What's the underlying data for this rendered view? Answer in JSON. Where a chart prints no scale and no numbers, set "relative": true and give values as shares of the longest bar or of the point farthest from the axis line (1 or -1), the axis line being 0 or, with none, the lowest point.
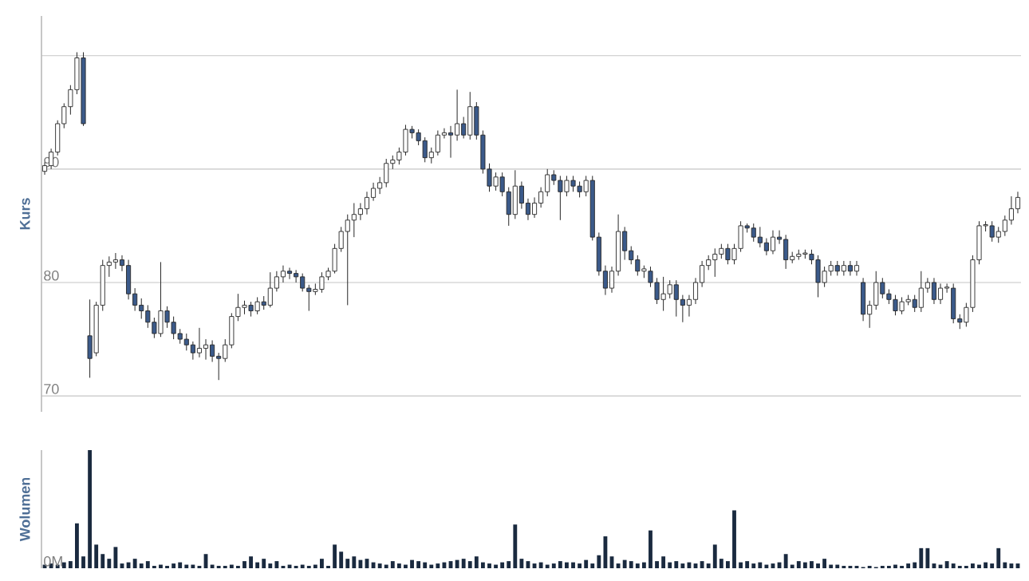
{
  "chart_data": [
    {
      "type": "candlestick",
      "ylabel": "Kurs",
      "grid": "y",
      "tick_labels": "y",
      "colors": [
        "#ffffff",
        "#ffffff",
        "#ffffff",
        "#ffffff",
        "#ffffff",
        "#ffffff",
        "#3b5a8a",
        "#3b5a8a",
        "#ffffff",
        "#ffffff",
        "#ffffff",
        "#ffffff",
        "#3b5a8a",
        "#3b5a8a",
        "#3b5a8a",
        "#3b5a8a",
        "#3b5a8a",
        "#3b5a8a",
        "#ffffff",
        "#3b5a8a",
        "#3b5a8a",
        "#3b5a8a",
        "#3b5a8a",
        "#3b5a8a",
        "#ffffff",
        "#ffffff",
        "#3b5a8a",
        "#3b5a8a",
        "#ffffff",
        "#ffffff",
        "#ffffff",
        "#ffffff",
        "#3b5a8a",
        "#ffffff",
        "#3b5a8a",
        "#ffffff",
        "#ffffff",
        "#ffffff",
        "#3b5a8a",
        "#3b5a8a",
        "#3b5a8a",
        "#3b5a8a",
        "#ffffff",
        "#ffffff",
        "#ffffff",
        "#ffffff",
        "#ffffff",
        "#ffffff",
        "#ffffff",
        "#ffffff",
        "#ffffff",
        "#ffffff",
        "#ffffff",
        "#ffffff",
        "#ffffff",
        "#ffffff",
        "#ffffff",
        "#3b5a8a",
        "#3b5a8a",
        "#3b5a8a",
        "#ffffff",
        "#ffffff",
        "#ffffff",
        "#3b5a8a",
        "#ffffff",
        "#3b5a8a",
        "#ffffff",
        "#3b5a8a",
        "#3b5a8a",
        "#3b5a8a",
        "#ffffff",
        "#3b5a8a",
        "#3b5a8a",
        "#ffffff",
        "#3b5a8a",
        "#3b5a8a",
        "#ffffff",
        "#ffffff",
        "#ffffff",
        "#3b5a8a",
        "#3b5a8a",
        "#ffffff",
        "#3b5a8a",
        "#3b5a8a",
        "#ffffff",
        "#3b5a8a",
        "#3b5a8a",
        "#3b5a8a",
        "#ffffff",
        "#ffffff",
        "#3b5a8a",
        "#3b5a8a",
        "#3b5a8a",
        "#ffffff",
        "#3b5a8a",
        "#3b5a8a",
        "#ffffff",
        "#ffffff",
        "#3b5a8a",
        "#3b5a8a",
        "#ffffff",
        "#ffffff",
        "#ffffff",
        "#ffffff",
        "#ffffff",
        "#ffffff",
        "#3b5a8a",
        "#ffffff",
        "#ffffff",
        "#3b5a8a",
        "#3b5a8a",
        "#3b5a8a",
        "#3b5a8a",
        "#ffffff",
        "#3b5a8a",
        "#3b5a8a",
        "#ffffff",
        "#ffffff",
        "#ffffff",
        "#3b5a8a",
        "#3b5a8a",
        "#ffffff",
        "#ffffff",
        "#3b5a8a",
        "#ffffff",
        "#3b5a8a",
        "#ffffff",
        "#3b5a8a",
        "#ffffff",
        "#ffffff",
        "#3b5a8a",
        "#3b5a8a",
        "#3b5a8a",
        "#ffffff",
        "#ffffff",
        "#3b5a8a",
        "#ffffff",
        "#ffffff",
        "#3b5a8a",
        "#ffffff",
        "#ffffff",
        "#3b5a8a",
        "#3b5a8a",
        "#ffffff",
        "#ffffff",
        "#ffffff",
        "#ffffff",
        "#3b5a8a",
        "#ffffff",
        "#ffffff",
        "#ffffff",
        "#ffffff"
      ],
      "ylim": [
        68.6,
        103.5
      ],
      "yticks": [
        70,
        80,
        90,
        {
          "value": 100,
          "label": null
        }
      ],
      "categories": [
        null,
        null,
        null,
        null,
        null,
        null,
        null,
        null,
        null,
        null,
        null,
        null,
        null,
        null,
        null,
        null,
        null,
        null,
        null,
        null,
        null,
        null,
        null,
        null,
        null,
        null,
        null,
        null,
        null,
        null,
        null,
        null,
        null,
        null,
        null,
        null,
        null,
        null,
        null,
        null,
        null,
        null,
        null,
        null,
        null,
        null,
        null,
        null,
        null,
        null,
        null,
        null,
        null,
        null,
        null,
        null,
        null,
        null,
        null,
        null,
        null,
        null,
        null,
        null,
        null,
        null,
        null,
        null,
        null,
        null,
        null,
        null,
        null,
        null,
        null,
        null,
        null,
        null,
        null,
        null,
        null,
        null,
        null,
        null,
        null,
        null,
        null,
        null,
        null,
        null,
        null,
        null,
        null,
        null,
        null,
        null,
        null,
        null,
        null,
        null,
        null,
        null,
        null,
        null,
        null,
        null,
        null,
        null,
        null,
        null,
        null,
        null,
        null,
        null,
        null,
        null,
        null,
        null,
        null,
        null,
        null,
        null,
        null,
        null,
        null,
        null,
        null,
        null,
        null,
        null,
        null,
        null,
        null,
        null,
        null,
        null,
        null,
        null,
        null,
        null,
        null,
        null,
        null,
        null,
        null,
        null,
        null,
        null,
        null,
        null,
        null,
        null
      ],
      "ohlc": [
        [
          89.8,
          90.6,
          89.5,
          90.3
        ],
        [
          90.3,
          91.8,
          90.0,
          91.5
        ],
        [
          91.5,
          94.3,
          91.2,
          94.0
        ],
        [
          94.0,
          95.8,
          93.6,
          95.5
        ],
        [
          95.5,
          97.4,
          94.8,
          97.0
        ],
        [
          97.0,
          100.3,
          96.6,
          99.8
        ],
        [
          99.8,
          100.3,
          93.8,
          94.0
        ],
        [
          75.3,
          78.5,
          71.6,
          73.3
        ],
        [
          73.8,
          78.3,
          73.5,
          78.0
        ],
        [
          78.0,
          82.0,
          77.5,
          81.5
        ],
        [
          81.5,
          82.3,
          80.5,
          81.8
        ],
        [
          81.8,
          82.6,
          81.2,
          82.0
        ],
        [
          82.0,
          82.4,
          81.0,
          81.5
        ],
        [
          81.5,
          82.0,
          78.5,
          79.0
        ],
        [
          79.0,
          79.5,
          77.5,
          78.0
        ],
        [
          78.0,
          78.6,
          76.8,
          77.5
        ],
        [
          77.5,
          78.0,
          76.0,
          76.5
        ],
        [
          76.5,
          76.9,
          75.1,
          75.5
        ],
        [
          75.5,
          81.8,
          75.2,
          77.5
        ],
        [
          77.5,
          77.9,
          76.0,
          76.5
        ],
        [
          76.5,
          77.0,
          75.0,
          75.5
        ],
        [
          75.5,
          75.9,
          74.6,
          75.0
        ],
        [
          75.0,
          75.5,
          74.0,
          74.5
        ],
        [
          74.5,
          74.8,
          73.2,
          73.8
        ],
        [
          73.8,
          76.0,
          73.4,
          74.2
        ],
        [
          74.2,
          75.0,
          73.2,
          74.5
        ],
        [
          74.5,
          74.9,
          73.0,
          73.5
        ],
        [
          73.5,
          73.8,
          71.4,
          73.3
        ],
        [
          73.3,
          75.0,
          73.0,
          74.5
        ],
        [
          74.5,
          77.3,
          74.2,
          77.0
        ],
        [
          77.0,
          79.0,
          76.6,
          77.8
        ],
        [
          77.8,
          78.4,
          77.2,
          78.0
        ],
        [
          78.0,
          78.3,
          77.0,
          77.5
        ],
        [
          77.5,
          78.7,
          77.2,
          78.3
        ],
        [
          78.3,
          78.8,
          77.6,
          78.0
        ],
        [
          78.0,
          80.9,
          77.8,
          79.5
        ],
        [
          79.5,
          81.0,
          79.2,
          80.5
        ],
        [
          80.5,
          81.5,
          80.0,
          81.0
        ],
        [
          81.0,
          81.3,
          80.3,
          80.8
        ],
        [
          80.8,
          81.1,
          80.0,
          80.5
        ],
        [
          80.5,
          80.8,
          79.2,
          79.5
        ],
        [
          79.5,
          79.8,
          77.5,
          79.2
        ],
        [
          79.2,
          79.9,
          78.9,
          79.4
        ],
        [
          79.4,
          80.9,
          79.1,
          80.5
        ],
        [
          80.5,
          81.3,
          80.2,
          81.0
        ],
        [
          81.0,
          83.4,
          80.8,
          83.0
        ],
        [
          83.0,
          84.9,
          82.7,
          84.5
        ],
        [
          84.5,
          86.0,
          78.0,
          85.5
        ],
        [
          85.5,
          87.0,
          84.0,
          86.0
        ],
        [
          86.0,
          87.0,
          85.5,
          86.5
        ],
        [
          86.5,
          88.0,
          86.0,
          87.5
        ],
        [
          87.5,
          88.8,
          87.2,
          88.3
        ],
        [
          88.3,
          89.3,
          87.8,
          88.8
        ],
        [
          88.8,
          90.9,
          88.4,
          90.5
        ],
        [
          90.5,
          91.2,
          90.0,
          90.8
        ],
        [
          90.8,
          91.9,
          90.4,
          91.5
        ],
        [
          91.5,
          93.9,
          91.2,
          93.5
        ],
        [
          93.5,
          93.8,
          92.7,
          93.2
        ],
        [
          93.2,
          93.5,
          92.1,
          92.5
        ],
        [
          92.5,
          92.8,
          90.6,
          91.0
        ],
        [
          91.0,
          91.9,
          90.5,
          91.5
        ],
        [
          91.5,
          93.4,
          91.2,
          93.0
        ],
        [
          93.0,
          93.6,
          92.7,
          93.2
        ],
        [
          93.2,
          93.8,
          91.0,
          93.0
        ],
        [
          93.0,
          97.0,
          92.5,
          94.0
        ],
        [
          94.0,
          94.6,
          92.7,
          93.0
        ],
        [
          93.0,
          96.8,
          92.6,
          95.5
        ],
        [
          95.5,
          95.9,
          92.6,
          93.0
        ],
        [
          93.0,
          93.4,
          89.6,
          90.0
        ],
        [
          90.0,
          90.5,
          88.0,
          88.5
        ],
        [
          88.5,
          89.7,
          88.1,
          89.3
        ],
        [
          89.3,
          89.7,
          87.6,
          88.0
        ],
        [
          88.0,
          88.4,
          85.0,
          86.0
        ],
        [
          86.0,
          89.9,
          85.6,
          88.5
        ],
        [
          88.5,
          88.9,
          86.5,
          87.0
        ],
        [
          87.0,
          87.4,
          85.5,
          86.0
        ],
        [
          86.0,
          87.5,
          85.7,
          87.0
        ],
        [
          87.0,
          88.4,
          86.6,
          88.0
        ],
        [
          88.0,
          90.0,
          87.6,
          89.5
        ],
        [
          89.5,
          89.9,
          88.6,
          89.0
        ],
        [
          89.0,
          89.4,
          85.5,
          88.0
        ],
        [
          88.0,
          89.4,
          87.6,
          89.0
        ],
        [
          89.0,
          89.4,
          88.0,
          88.5
        ],
        [
          88.5,
          88.9,
          87.5,
          88.0
        ],
        [
          88.0,
          89.4,
          87.6,
          89.0
        ],
        [
          89.0,
          89.4,
          83.7,
          84.0
        ],
        [
          84.0,
          84.4,
          80.6,
          81.0
        ],
        [
          81.0,
          81.5,
          78.9,
          79.5
        ],
        [
          79.5,
          81.4,
          79.1,
          81.0
        ],
        [
          81.0,
          86.0,
          80.6,
          84.5
        ],
        [
          84.5,
          84.9,
          82.0,
          82.8
        ],
        [
          82.8,
          83.2,
          81.6,
          82.0
        ],
        [
          82.0,
          82.4,
          80.6,
          81.0
        ],
        [
          81.0,
          81.5,
          80.4,
          81.2
        ],
        [
          81.0,
          81.4,
          79.6,
          80.0
        ],
        [
          80.0,
          80.4,
          78.1,
          78.5
        ],
        [
          78.5,
          80.5,
          77.5,
          79.0
        ],
        [
          79.0,
          80.2,
          78.6,
          79.8
        ],
        [
          79.8,
          80.2,
          77.0,
          78.5
        ],
        [
          78.5,
          78.9,
          76.5,
          78.0
        ],
        [
          78.0,
          78.9,
          77.0,
          78.5
        ],
        [
          78.5,
          80.4,
          78.1,
          80.0
        ],
        [
          80.0,
          81.9,
          79.6,
          81.5
        ],
        [
          81.5,
          82.4,
          81.1,
          82.0
        ],
        [
          82.0,
          83.0,
          80.5,
          82.5
        ],
        [
          82.5,
          83.4,
          82.1,
          83.0
        ],
        [
          83.0,
          83.4,
          81.6,
          82.0
        ],
        [
          82.0,
          83.4,
          81.6,
          83.0
        ],
        [
          83.0,
          85.4,
          82.7,
          85.0
        ],
        [
          85.0,
          85.2,
          84.4,
          84.8
        ],
        [
          84.8,
          85.2,
          83.6,
          84.0
        ],
        [
          84.0,
          84.9,
          83.1,
          83.5
        ],
        [
          83.5,
          83.9,
          82.4,
          82.8
        ],
        [
          82.8,
          84.6,
          82.5,
          84.0
        ],
        [
          84.0,
          84.6,
          83.4,
          83.8
        ],
        [
          83.8,
          84.2,
          81.2,
          82.0
        ],
        [
          82.0,
          82.7,
          81.7,
          82.3
        ],
        [
          82.3,
          82.9,
          82.0,
          82.5
        ],
        [
          82.5,
          82.9,
          82.1,
          82.6
        ],
        [
          82.5,
          82.9,
          81.6,
          82.0
        ],
        [
          82.0,
          82.4,
          78.7,
          80.0
        ],
        [
          80.0,
          81.4,
          79.6,
          81.0
        ],
        [
          81.0,
          81.9,
          80.6,
          81.5
        ],
        [
          81.5,
          81.9,
          80.6,
          81.0
        ],
        [
          81.0,
          81.9,
          80.6,
          81.5
        ],
        [
          81.5,
          81.9,
          80.6,
          81.0
        ],
        [
          81.0,
          81.9,
          80.6,
          81.5
        ],
        [
          80.0,
          80.4,
          76.6,
          77.2
        ],
        [
          77.2,
          78.4,
          76.0,
          78.0
        ],
        [
          78.0,
          81.0,
          77.6,
          80.0
        ],
        [
          80.0,
          80.4,
          78.6,
          79.0
        ],
        [
          79.0,
          79.4,
          78.1,
          78.5
        ],
        [
          78.5,
          78.9,
          77.1,
          77.5
        ],
        [
          77.5,
          78.7,
          77.2,
          78.3
        ],
        [
          78.3,
          78.9,
          78.0,
          78.5
        ],
        [
          78.5,
          78.9,
          77.4,
          77.8
        ],
        [
          77.8,
          81.0,
          77.4,
          79.5
        ],
        [
          79.5,
          80.4,
          79.1,
          80.0
        ],
        [
          80.0,
          80.4,
          78.1,
          78.5
        ],
        [
          78.5,
          79.9,
          78.1,
          79.5
        ],
        [
          79.5,
          79.9,
          79.1,
          79.6
        ],
        [
          79.5,
          79.9,
          76.4,
          76.8
        ],
        [
          76.8,
          77.2,
          75.9,
          76.5
        ],
        [
          76.5,
          78.2,
          76.1,
          77.8
        ],
        [
          77.8,
          82.4,
          77.4,
          82.0
        ],
        [
          82.0,
          85.4,
          81.6,
          85.0
        ],
        [
          85.0,
          85.4,
          84.5,
          85.1
        ],
        [
          85.0,
          85.4,
          83.6,
          84.0
        ],
        [
          84.0,
          84.9,
          83.5,
          84.5
        ],
        [
          84.5,
          85.9,
          84.1,
          85.5
        ],
        [
          85.5,
          87.6,
          85.1,
          86.5
        ],
        [
          86.5,
          88.0,
          86.1,
          87.5
        ]
      ]
    },
    {
      "type": "bar",
      "relative": true,
      "ylabel": "Wolumen",
      "color": "#1a2a3f",
      "annotations": [
        "0M"
      ],
      "categories": [
        null,
        null,
        null,
        null,
        null,
        null,
        null,
        null,
        null,
        null,
        null,
        null,
        null,
        null,
        null,
        null,
        null,
        null,
        null,
        null,
        null,
        null,
        null,
        null,
        null,
        null,
        null,
        null,
        null,
        null,
        null,
        null,
        null,
        null,
        null,
        null,
        null,
        null,
        null,
        null,
        null,
        null,
        null,
        null,
        null,
        null,
        null,
        null,
        null,
        null,
        null,
        null,
        null,
        null,
        null,
        null,
        null,
        null,
        null,
        null,
        null,
        null,
        null,
        null,
        null,
        null,
        null,
        null,
        null,
        null,
        null,
        null,
        null,
        null,
        null,
        null,
        null,
        null,
        null,
        null,
        null,
        null,
        null,
        null,
        null,
        null,
        null,
        null,
        null,
        null,
        null,
        null,
        null,
        null,
        null,
        null,
        null,
        null,
        null,
        null,
        null,
        null,
        null,
        null,
        null,
        null,
        null,
        null,
        null,
        null,
        null,
        null,
        null,
        null,
        null,
        null,
        null,
        null,
        null,
        null,
        null,
        null,
        null,
        null,
        null,
        null,
        null,
        null,
        null,
        null,
        null,
        null,
        null,
        null,
        null,
        null,
        null,
        null,
        null,
        null,
        null,
        null,
        null,
        null,
        null,
        null,
        null,
        null,
        null,
        null,
        null,
        null
      ],
      "values": [
        0.03,
        0.04,
        0.03,
        0.05,
        0.06,
        0.38,
        0.1,
        1.0,
        0.2,
        0.12,
        0.08,
        0.18,
        0.04,
        0.05,
        0.08,
        0.04,
        0.06,
        0.02,
        0.03,
        0.02,
        0.04,
        0.05,
        0.03,
        0.03,
        0.02,
        0.12,
        0.03,
        0.02,
        0.02,
        0.03,
        0.02,
        0.06,
        0.1,
        0.05,
        0.08,
        0.04,
        0.06,
        0.02,
        0.03,
        0.02,
        0.03,
        0.02,
        0.03,
        0.08,
        0.02,
        0.2,
        0.14,
        0.08,
        0.1,
        0.07,
        0.08,
        0.05,
        0.04,
        0.03,
        0.06,
        0.04,
        0.03,
        0.07,
        0.06,
        0.05,
        0.03,
        0.04,
        0.05,
        0.06,
        0.07,
        0.08,
        0.06,
        0.1,
        0.05,
        0.04,
        0.03,
        0.05,
        0.06,
        0.37,
        0.08,
        0.06,
        0.04,
        0.05,
        0.03,
        0.04,
        0.06,
        0.05,
        0.05,
        0.04,
        0.07,
        0.04,
        0.11,
        0.27,
        0.1,
        0.04,
        0.07,
        0.06,
        0.04,
        0.05,
        0.32,
        0.06,
        0.1,
        0.05,
        0.06,
        0.04,
        0.05,
        0.04,
        0.06,
        0.04,
        0.2,
        0.08,
        0.06,
        0.49,
        0.05,
        0.06,
        0.04,
        0.05,
        0.03,
        0.04,
        0.05,
        0.12,
        0.03,
        0.06,
        0.05,
        0.06,
        0.04,
        0.08,
        0.03,
        0.03,
        0.02,
        0.02,
        0.02,
        0.01,
        0.02,
        0.01,
        0.02,
        0.02,
        0.03,
        0.02,
        0.04,
        0.05,
        0.17,
        0.17,
        0.04,
        0.03,
        0.06,
        0.04,
        0.02,
        0.02,
        0.04,
        0.03,
        0.05,
        0.04,
        0.17,
        0.05,
        0.04,
        0.04
      ]
    }
  ]
}
